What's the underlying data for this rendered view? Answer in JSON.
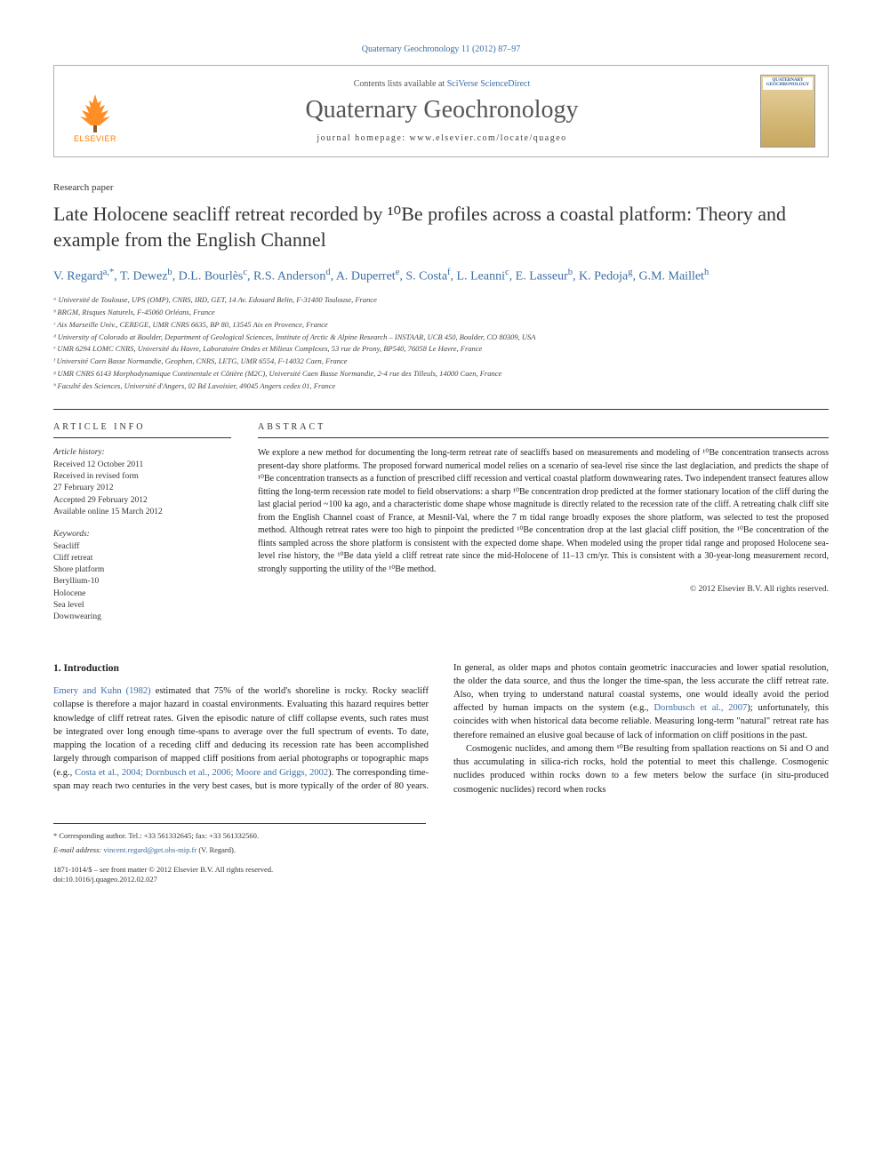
{
  "crumb": "Quaternary Geochronology 11 (2012) 87–97",
  "header": {
    "contents_prefix": "Contents lists available at ",
    "contents_link": "SciVerse ScienceDirect",
    "journal": "Quaternary Geochronology",
    "homepage_label": "journal homepage: ",
    "homepage_url": "www.elsevier.com/locate/quageo",
    "publisher": "ELSEVIER",
    "cover_title": "QUATERNARY GEOCHRONOLOGY"
  },
  "article_type": "Research paper",
  "title": "Late Holocene seacliff retreat recorded by ¹⁰Be profiles across a coastal platform: Theory and example from the English Channel",
  "authors_html": "V. Regard<sup>a,*</sup>, T. Dewez<sup>b</sup>, D.L. Bourlès<sup>c</sup>, R.S. Anderson<sup>d</sup>, A. Duperret<sup>e</sup>, S. Costa<sup>f</sup>, L. Leanni<sup>c</sup>, E. Lasseur<sup>b</sup>, K. Pedoja<sup>g</sup>, G.M. Maillet<sup>h</sup>",
  "affiliations": [
    "ᵃ Université de Toulouse, UPS (OMP), CNRS, IRD, GET, 14 Av. Edouard Belin, F-31400 Toulouse, France",
    "ᵇ BRGM, Risques Naturels, F-45060 Orléans, France",
    "ᶜ Aix Marseille Univ., CEREGE, UMR CNRS 6635, BP 80, 13545 Aix en Provence, France",
    "ᵈ University of Colorado at Boulder, Department of Geological Sciences, Institute of Arctic & Alpine Research – INSTAAR, UCB 450, Boulder, CO 80309, USA",
    "ᵉ UMR 6294 LOMC CNRS, Université du Havre, Laboratoire Ondes et Milieux Complexes, 53 rue de Prony, BP540, 76058 Le Havre, France",
    "ᶠ Université Caen Basse Normandie, Geophen, CNRS, LETG, UMR 6554, F-14032 Caen, France",
    "ᵍ UMR CNRS 6143 Morphodynamique Continentale et Côtière (M2C), Université Caen Basse Normandie, 2-4 rue des Tilleuls, 14000 Caen, France",
    "ʰ Faculté des Sciences, Université d'Angers, 02 Bd Lavoisier, 49045 Angers cedex 01, France"
  ],
  "article_info": {
    "heading": "ARTICLE INFO",
    "history_label": "Article history:",
    "history": [
      "Received 12 October 2011",
      "Received in revised form",
      "27 February 2012",
      "Accepted 29 February 2012",
      "Available online 15 March 2012"
    ],
    "keywords_label": "Keywords:",
    "keywords": [
      "Seacliff",
      "Cliff retreat",
      "Shore platform",
      "Beryllium-10",
      "Holocene",
      "Sea level",
      "Downwearing"
    ]
  },
  "abstract": {
    "heading": "ABSTRACT",
    "text": "We explore a new method for documenting the long-term retreat rate of seacliffs based on measurements and modeling of ¹⁰Be concentration transects across present-day shore platforms. The proposed forward numerical model relies on a scenario of sea-level rise since the last deglaciation, and predicts the shape of ¹⁰Be concentration transects as a function of prescribed cliff recession and vertical coastal platform downwearing rates. Two independent transect features allow fitting the long-term recession rate model to field observations: a sharp ¹⁰Be concentration drop predicted at the former stationary location of the cliff during the last glacial period ~100 ka ago, and a characteristic dome shape whose magnitude is directly related to the recession rate of the cliff. A retreating chalk cliff site from the English Channel coast of France, at Mesnil-Val, where the 7 m tidal range broadly exposes the shore platform, was selected to test the proposed method. Although retreat rates were too high to pinpoint the predicted ¹⁰Be concentration drop at the last glacial cliff position, the ¹⁰Be concentration of the flints sampled across the shore platform is consistent with the expected dome shape. When modeled using the proper tidal range and proposed Holocene sea-level rise history, the ¹⁰Be data yield a cliff retreat rate since the mid-Holocene of 11–13 cm/yr. This is consistent with a 30-year-long measurement record, strongly supporting the utility of the ¹⁰Be method.",
    "copyright": "© 2012 Elsevier B.V. All rights reserved."
  },
  "body": {
    "section_heading": "1. Introduction",
    "p1_a": "Emery and Kuhn (1982)",
    "p1_b": " estimated that 75% of the world's shoreline is rocky. Rocky seacliff collapse is therefore a major hazard in coastal environments. Evaluating this hazard requires better knowledge of cliff retreat rates. Given the episodic nature of cliff collapse events, such rates must be integrated over long enough time-spans to average over the full spectrum of events. To date, mapping the location of a receding cliff and deducing its recession rate has been accomplished largely through comparison of mapped cliff positions from aerial photographs or topographic maps (e.g., ",
    "p1_c": "Costa et al., 2004; Dornbusch et al., 2006; Moore and",
    "p2_a": "Griggs, 2002",
    "p2_b": "). The corresponding time-span may reach two centuries in the very best cases, but is more typically of the order of 80 years. In general, as older maps and photos contain geometric inaccuracies and lower spatial resolution, the older the data source, and thus the longer the time-span, the less accurate the cliff retreat rate. Also, when trying to understand natural coastal systems, one would ideally avoid the period affected by human impacts on the system (e.g., ",
    "p2_c": "Dornbusch et al., 2007",
    "p2_d": "); unfortunately, this coincides with when historical data become reliable. Measuring long-term \"natural\" retreat rate has therefore remained an elusive goal because of lack of information on cliff positions in the past.",
    "p3": "Cosmogenic nuclides, and among them ¹⁰Be resulting from spallation reactions on Si and O and thus accumulating in silica-rich rocks, hold the potential to meet this challenge. Cosmogenic nuclides produced within rocks down to a few meters below the surface (in situ-produced cosmogenic nuclides) record when rocks"
  },
  "footer": {
    "corr": "* Corresponding author. Tel.: +33 561332645; fax: +33 561332560.",
    "email_label": "E-mail address: ",
    "email": "vincent.regard@get.obs-mip.fr",
    "email_who": " (V. Regard).",
    "issn": "1871-1014/$ – see front matter © 2012 Elsevier B.V. All rights reserved.",
    "doi": "doi:10.1016/j.quageo.2012.02.027"
  },
  "colors": {
    "link": "#3a6ea5",
    "orange": "#ff7a00",
    "text": "#1a1a1a",
    "border": "#333333"
  }
}
